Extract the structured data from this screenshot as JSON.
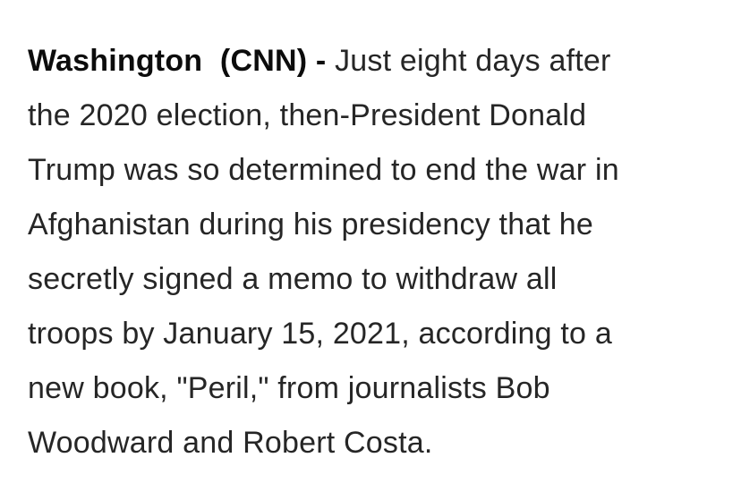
{
  "article": {
    "dateline": {
      "location": "Washington",
      "source": "(CNN)",
      "separator": "-"
    },
    "lines": [
      "Just eight days after",
      "the 2020 election, then-President Donald",
      "Trump was so determined to end the war in",
      "Afghanistan during his presidency that he",
      "secretly signed a memo to withdraw all",
      "troops by January 15, 2021, according to a",
      "new book, \"Peril,\" from journalists Bob",
      "Woodward and Robert Costa."
    ]
  }
}
